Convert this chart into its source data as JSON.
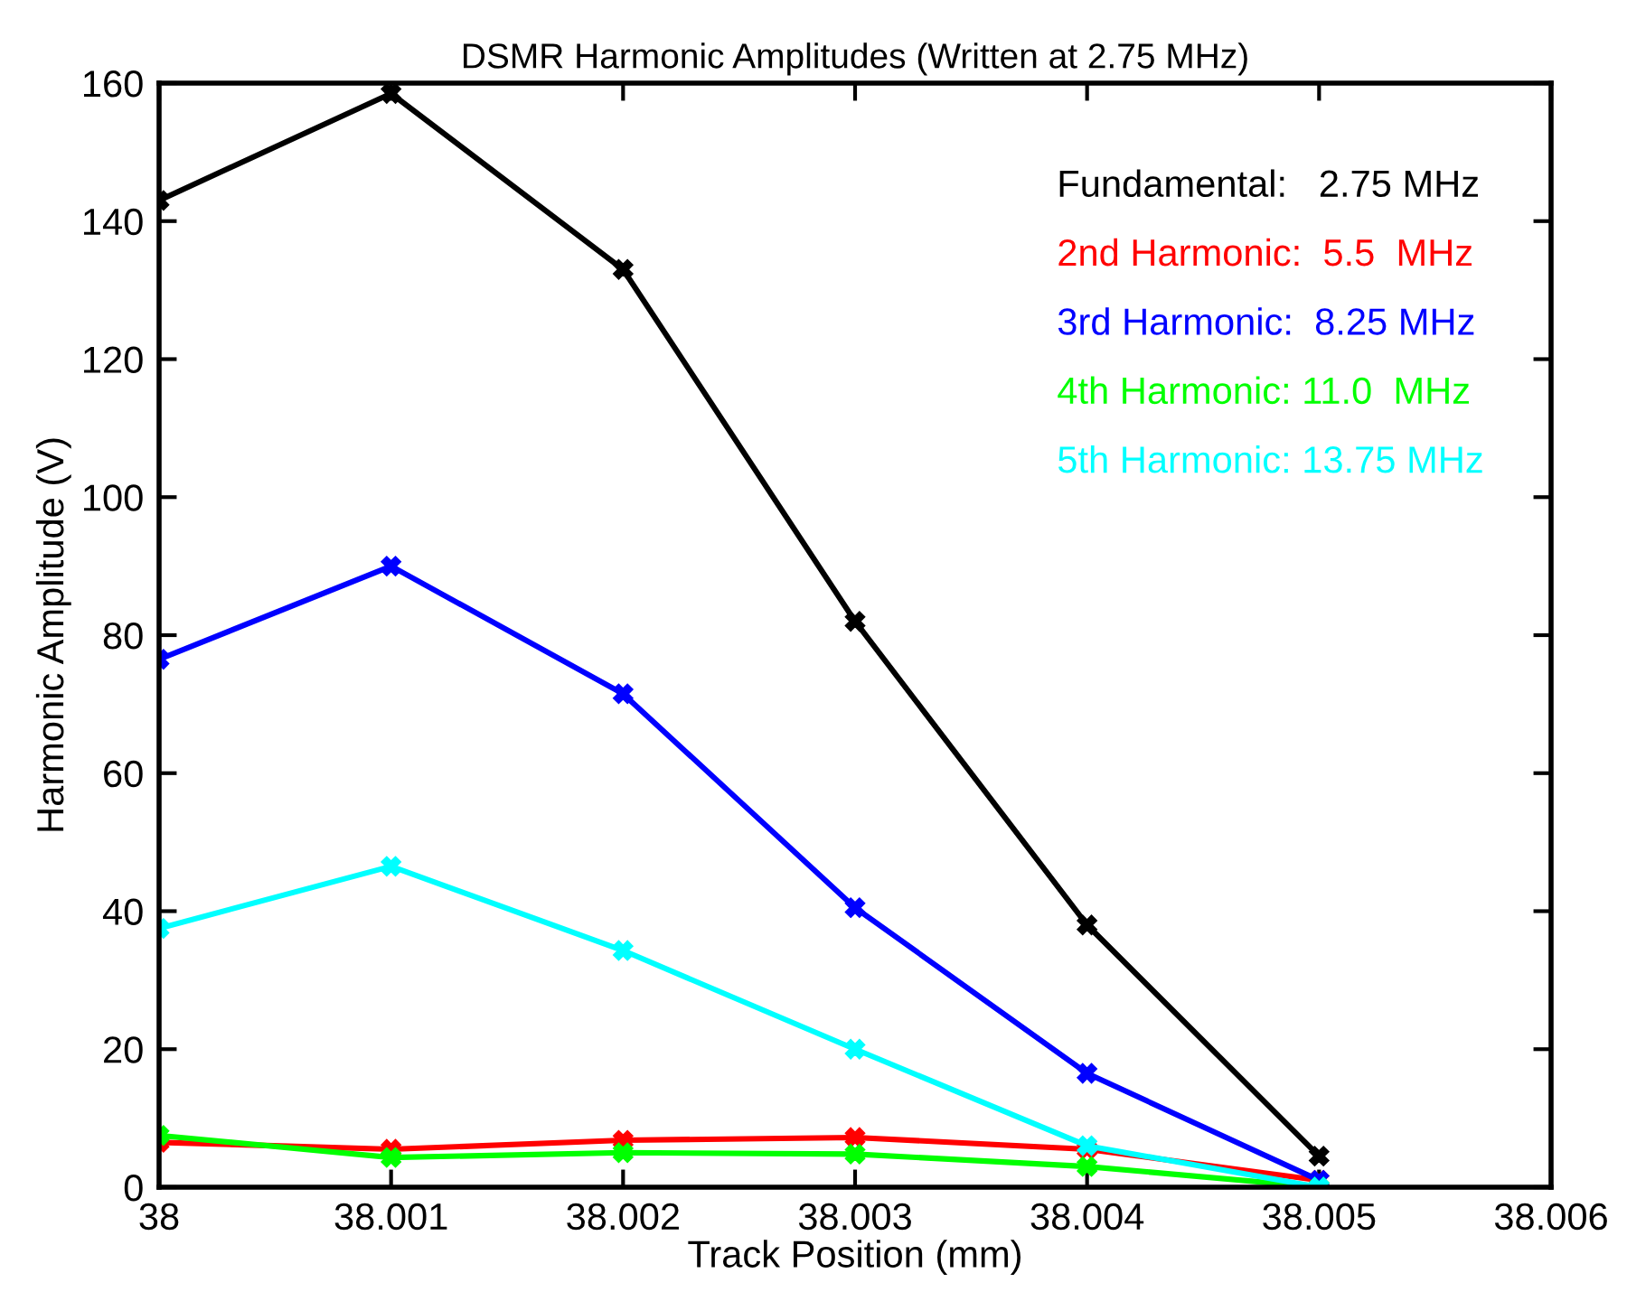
{
  "chart_data": {
    "type": "line",
    "title": "DSMR Harmonic Amplitudes (Written at 2.75 MHz)",
    "xlabel": "Track Position (mm)",
    "ylabel": "Harmonic Amplitude (V)",
    "x": [
      38,
      38.001,
      38.002,
      38.003,
      38.004,
      38.005
    ],
    "series": [
      {
        "name": "Fundamental:   2.75 MHz",
        "color": "#000000",
        "values": [
          143,
          158.5,
          133,
          82,
          38,
          4.5
        ]
      },
      {
        "name": "2nd Harmonic:  5.5  MHz",
        "color": "#ff0000",
        "values": [
          6.5,
          5.5,
          6.8,
          7.2,
          5.5,
          1
        ]
      },
      {
        "name": "3rd Harmonic:  8.25 MHz",
        "color": "#0000ff",
        "values": [
          76.5,
          90,
          71.5,
          40.5,
          16.5,
          1
        ]
      },
      {
        "name": "4th Harmonic: 11.0  MHz",
        "color": "#00ff00",
        "values": [
          7.5,
          4.3,
          5,
          4.8,
          3,
          0
        ]
      },
      {
        "name": "5th Harmonic: 13.75 MHz",
        "color": "#00ffff",
        "values": [
          37.5,
          46.5,
          34.3,
          20,
          6,
          0
        ]
      }
    ],
    "xlim": [
      38,
      38.006
    ],
    "xticks": [
      38,
      38.001,
      38.002,
      38.003,
      38.004,
      38.005,
      38.006
    ],
    "ylim": [
      0,
      160
    ],
    "yticks": [
      0,
      20,
      40,
      60,
      80,
      100,
      120,
      140,
      160
    ],
    "marker": "cross",
    "line_style": "solid",
    "grid": false,
    "legend": "top right"
  }
}
